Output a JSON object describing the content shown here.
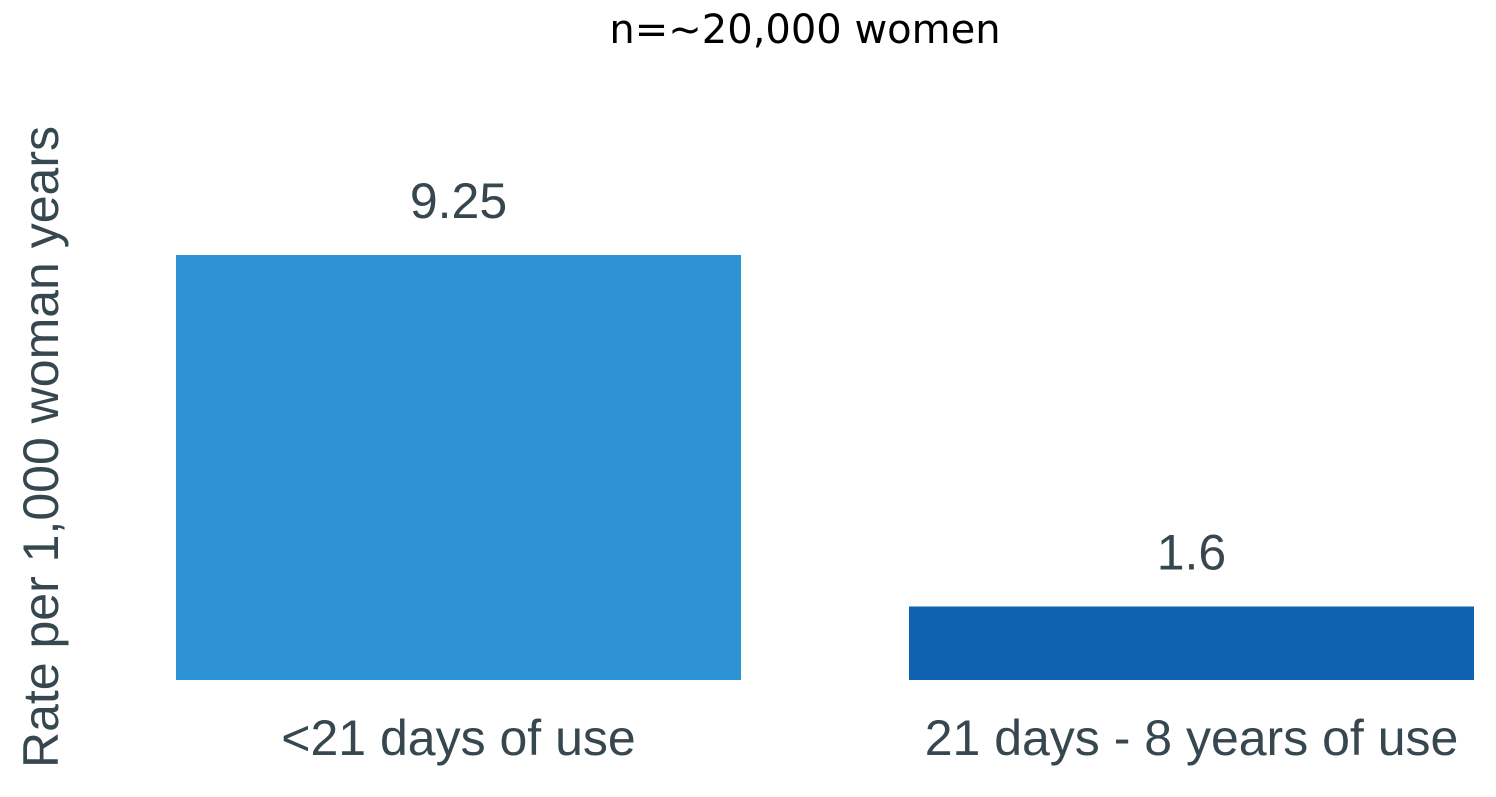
{
  "chart_data": {
    "type": "bar",
    "title": "n=~20,000 women",
    "y_label": "Rate per 1,000 woman years",
    "categories": [
      "<21 days of use",
      "21 days - 8 years of use"
    ],
    "values": [
      9.25,
      1.6
    ],
    "colors": [
      "#2e93d5",
      "#0f62b0"
    ]
  }
}
